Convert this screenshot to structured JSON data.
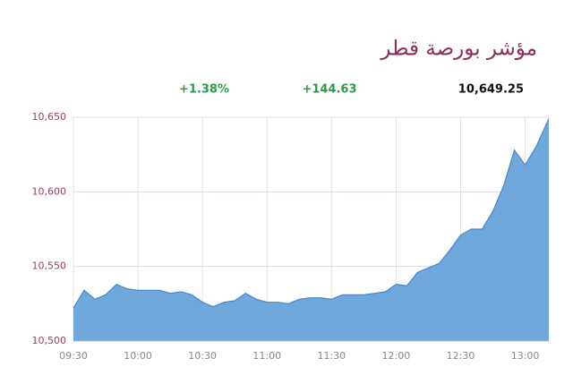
{
  "chart_data": {
    "type": "area",
    "title": "مؤشر بورصة قطر",
    "annotations": [
      "+1.38%",
      "+144.63",
      "10,649.25"
    ],
    "x": [
      "09:30",
      "09:35",
      "09:40",
      "09:45",
      "09:50",
      "09:55",
      "10:00",
      "10:05",
      "10:10",
      "10:15",
      "10:20",
      "10:25",
      "10:30",
      "10:35",
      "10:40",
      "10:45",
      "10:50",
      "10:55",
      "11:00",
      "11:05",
      "11:10",
      "11:15",
      "11:20",
      "11:25",
      "11:30",
      "11:35",
      "11:40",
      "11:45",
      "11:50",
      "11:55",
      "12:00",
      "12:05",
      "12:10",
      "12:15",
      "12:20",
      "12:25",
      "12:30",
      "12:35",
      "12:40",
      "12:45",
      "12:50",
      "12:55",
      "13:00",
      "13:05",
      "13:11"
    ],
    "values": [
      10522,
      10534,
      10528,
      10531,
      10538,
      10535,
      10534,
      10534,
      10534,
      10532,
      10533,
      10531,
      10526,
      10523,
      10526,
      10527,
      10532,
      10528,
      10526,
      10526,
      10525,
      10528,
      10529,
      10529,
      10528,
      10531,
      10531,
      10531,
      10532,
      10533,
      10538,
      10537,
      10546,
      10549,
      10552,
      10561,
      10571,
      10575,
      10575,
      10587,
      10604,
      10628,
      10618,
      10630,
      10649
    ],
    "color": "#6fa8dc",
    "xlim": [
      "09:30",
      "13:11"
    ],
    "xticks": [
      "09:30",
      "10:00",
      "10:30",
      "11:00",
      "11:30",
      "12:00",
      "12:30",
      "13:00"
    ],
    "ylim": [
      10500,
      10650
    ],
    "yticks": [
      {
        "value": 10500,
        "label": "10,500"
      },
      {
        "value": 10550,
        "label": "10,550"
      },
      {
        "value": 10600,
        "label": "10,600"
      },
      {
        "value": 10650,
        "label": "10,650"
      }
    ],
    "grid": true
  }
}
